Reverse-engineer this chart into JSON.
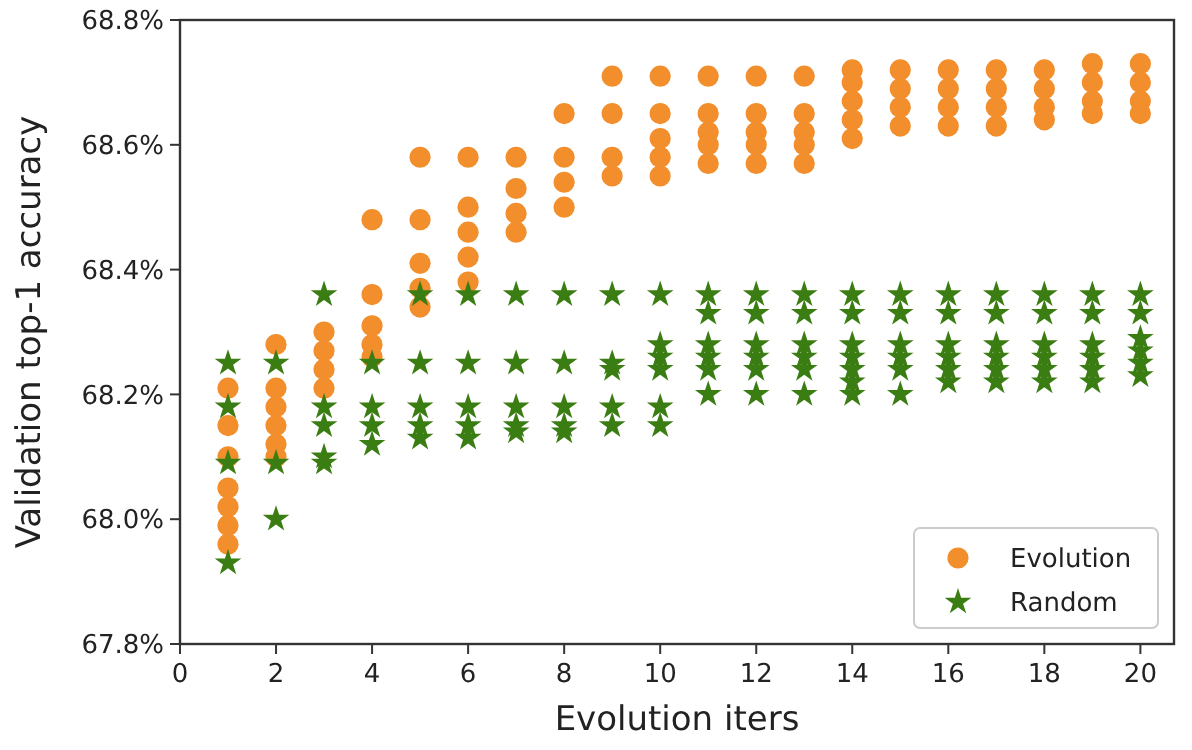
{
  "chart_data": {
    "type": "scatter",
    "xlabel": "Evolution iters",
    "ylabel": "Validation top-1 accuracy",
    "xlim": [
      0,
      20.7
    ],
    "xticks": [
      0,
      2,
      4,
      6,
      8,
      10,
      12,
      14,
      16,
      18,
      20
    ],
    "ylim": [
      67.8,
      68.8
    ],
    "yticks": [
      {
        "value": 67.8,
        "label": "67.8%"
      },
      {
        "value": 68.0,
        "label": "68.0%"
      },
      {
        "value": 68.2,
        "label": "68.2%"
      },
      {
        "value": 68.4,
        "label": "68.4%"
      },
      {
        "value": 68.6,
        "label": "68.6%"
      },
      {
        "value": 68.8,
        "label": "68.8%"
      }
    ],
    "grid": false,
    "legend": "bottom right",
    "series": [
      {
        "name": "Evolution",
        "color": "#f28e2b",
        "marker": "circle",
        "x": [
          1,
          1,
          1,
          1,
          1,
          1,
          1,
          2,
          2,
          2,
          2,
          2,
          2,
          3,
          3,
          3,
          3,
          4,
          4,
          4,
          4,
          4,
          5,
          5,
          5,
          5,
          5,
          6,
          6,
          6,
          6,
          6,
          7,
          7,
          7,
          7,
          8,
          8,
          8,
          8,
          9,
          9,
          9,
          9,
          10,
          10,
          10,
          10,
          10,
          11,
          11,
          11,
          11,
          11,
          12,
          12,
          12,
          12,
          12,
          13,
          13,
          13,
          13,
          13,
          14,
          14,
          14,
          14,
          14,
          15,
          15,
          15,
          15,
          16,
          16,
          16,
          16,
          17,
          17,
          17,
          17,
          18,
          18,
          18,
          18,
          19,
          19,
          19,
          19,
          20,
          20,
          20,
          20
        ],
        "values": [
          68.21,
          68.15,
          68.1,
          68.05,
          68.02,
          67.99,
          67.96,
          68.28,
          68.21,
          68.18,
          68.15,
          68.12,
          68.1,
          68.3,
          68.27,
          68.24,
          68.21,
          68.48,
          68.36,
          68.31,
          68.28,
          68.26,
          68.58,
          68.48,
          68.41,
          68.37,
          68.34,
          68.58,
          68.5,
          68.46,
          68.42,
          68.38,
          68.58,
          68.53,
          68.49,
          68.46,
          68.65,
          68.58,
          68.54,
          68.5,
          68.71,
          68.65,
          68.58,
          68.55,
          68.71,
          68.65,
          68.61,
          68.58,
          68.55,
          68.71,
          68.65,
          68.62,
          68.6,
          68.57,
          68.71,
          68.65,
          68.62,
          68.6,
          68.57,
          68.71,
          68.65,
          68.62,
          68.6,
          68.57,
          68.72,
          68.7,
          68.67,
          68.64,
          68.61,
          68.72,
          68.69,
          68.66,
          68.63,
          68.72,
          68.69,
          68.66,
          68.63,
          68.72,
          68.69,
          68.66,
          68.63,
          68.72,
          68.69,
          68.66,
          68.64,
          68.73,
          68.7,
          68.67,
          68.65,
          68.73,
          68.7,
          68.67,
          68.65
        ]
      },
      {
        "name": "Random",
        "color": "#3a7d12",
        "marker": "star",
        "x": [
          1,
          1,
          1,
          1,
          2,
          2,
          2,
          3,
          3,
          3,
          3,
          3,
          4,
          4,
          4,
          4,
          5,
          5,
          5,
          5,
          5,
          6,
          6,
          6,
          6,
          6,
          7,
          7,
          7,
          7,
          7,
          8,
          8,
          8,
          8,
          8,
          9,
          9,
          9,
          9,
          9,
          10,
          10,
          10,
          10,
          10,
          10,
          11,
          11,
          11,
          11,
          11,
          11,
          12,
          12,
          12,
          12,
          12,
          12,
          13,
          13,
          13,
          13,
          13,
          13,
          14,
          14,
          14,
          14,
          14,
          14,
          14,
          15,
          15,
          15,
          15,
          15,
          15,
          16,
          16,
          16,
          16,
          16,
          16,
          17,
          17,
          17,
          17,
          17,
          17,
          18,
          18,
          18,
          18,
          18,
          18,
          19,
          19,
          19,
          19,
          19,
          19,
          20,
          20,
          20,
          20,
          20,
          20
        ],
        "values": [
          68.25,
          68.18,
          68.09,
          67.93,
          68.25,
          68.09,
          68.0,
          68.36,
          68.18,
          68.15,
          68.1,
          68.09,
          68.25,
          68.18,
          68.15,
          68.12,
          68.36,
          68.25,
          68.18,
          68.15,
          68.13,
          68.36,
          68.25,
          68.18,
          68.15,
          68.13,
          68.36,
          68.25,
          68.18,
          68.15,
          68.14,
          68.36,
          68.25,
          68.18,
          68.15,
          68.14,
          68.36,
          68.25,
          68.24,
          68.18,
          68.15,
          68.36,
          68.28,
          68.26,
          68.24,
          68.18,
          68.15,
          68.36,
          68.33,
          68.28,
          68.26,
          68.24,
          68.2,
          68.36,
          68.33,
          68.28,
          68.26,
          68.24,
          68.2,
          68.36,
          68.33,
          68.28,
          68.26,
          68.24,
          68.2,
          68.36,
          68.33,
          68.28,
          68.26,
          68.24,
          68.22,
          68.2,
          68.36,
          68.33,
          68.28,
          68.26,
          68.24,
          68.2,
          68.36,
          68.33,
          68.28,
          68.26,
          68.24,
          68.22,
          68.36,
          68.33,
          68.28,
          68.26,
          68.24,
          68.22,
          68.36,
          68.33,
          68.28,
          68.26,
          68.24,
          68.22,
          68.36,
          68.33,
          68.28,
          68.26,
          68.24,
          68.22,
          68.36,
          68.33,
          68.29,
          68.27,
          68.25,
          68.23
        ]
      }
    ]
  }
}
